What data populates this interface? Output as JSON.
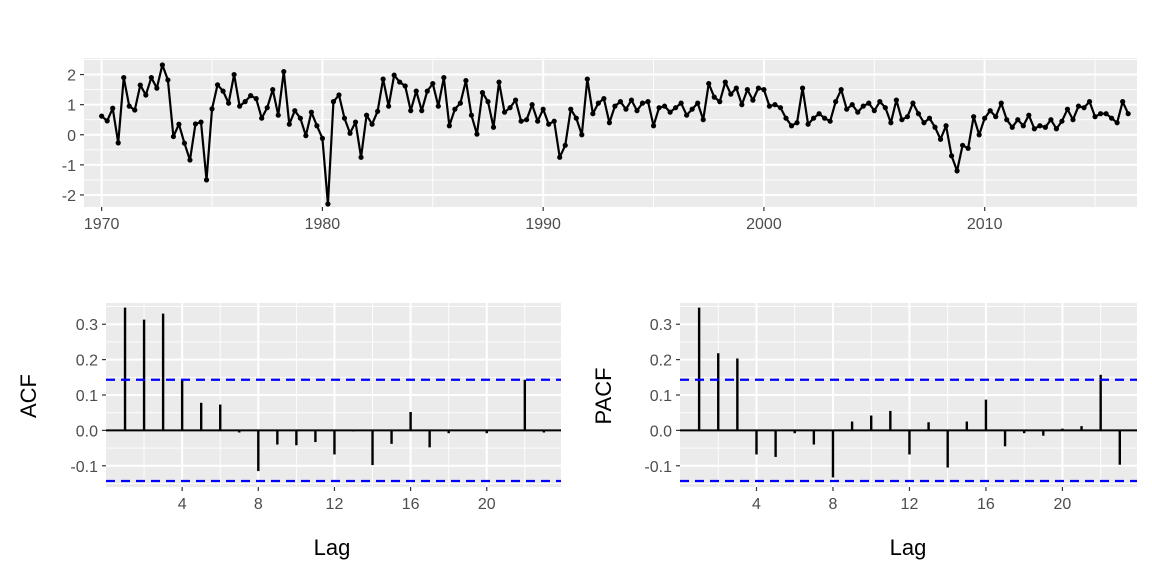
{
  "colors": {
    "panel_bg": "#ebebeb",
    "grid_major": "#ffffff",
    "line": "#000000",
    "ci": "#0000ff",
    "tick_text": "#4d4d4d"
  },
  "chart_data": [
    {
      "type": "line",
      "title": "",
      "xlabel": "",
      "ylabel": "",
      "frequency": "quarterly",
      "start": [
        1970,
        1
      ],
      "xlim": [
        1969.2,
        2016.9
      ],
      "ylim": [
        -2.4,
        2.55
      ],
      "xticks": [
        1970,
        1980,
        1990,
        2000,
        2010
      ],
      "yticks": [
        -2,
        -1,
        0,
        1,
        2
      ],
      "ytick_labels": [
        "-2",
        "-1",
        "0",
        "1",
        "2"
      ],
      "grid": true,
      "points_marked": true,
      "values": [
        0.62,
        0.46,
        0.88,
        -0.27,
        1.9,
        0.95,
        0.82,
        1.65,
        1.32,
        1.9,
        1.55,
        2.32,
        1.82,
        -0.06,
        0.35,
        -0.28,
        -0.84,
        0.36,
        0.42,
        -1.5,
        0.86,
        1.66,
        1.45,
        1.05,
        2.0,
        0.95,
        1.1,
        1.3,
        1.2,
        0.55,
        0.9,
        1.5,
        0.65,
        2.1,
        0.35,
        0.8,
        0.55,
        -0.03,
        0.75,
        0.3,
        -0.12,
        -2.3,
        1.1,
        1.32,
        0.55,
        0.05,
        0.42,
        -0.75,
        0.65,
        0.35,
        0.78,
        1.85,
        0.95,
        1.98,
        1.75,
        1.62,
        0.8,
        1.45,
        0.8,
        1.45,
        1.7,
        0.95,
        1.9,
        0.3,
        0.85,
        1.05,
        1.8,
        0.65,
        0.02,
        1.4,
        1.1,
        0.25,
        1.75,
        0.75,
        0.9,
        1.15,
        0.45,
        0.5,
        1.0,
        0.45,
        0.85,
        0.35,
        0.45,
        -0.75,
        -0.35,
        0.85,
        0.55,
        0.0,
        1.85,
        0.7,
        1.05,
        1.2,
        0.4,
        0.95,
        1.1,
        0.85,
        1.15,
        0.8,
        1.05,
        1.1,
        0.3,
        0.9,
        0.95,
        0.75,
        0.9,
        1.05,
        0.65,
        0.85,
        1.05,
        0.5,
        1.7,
        1.25,
        1.1,
        1.75,
        1.35,
        1.55,
        1.0,
        1.5,
        1.15,
        1.55,
        1.5,
        0.95,
        1.0,
        0.9,
        0.55,
        0.3,
        0.4,
        1.55,
        0.35,
        0.55,
        0.7,
        0.55,
        0.45,
        1.1,
        1.5,
        0.85,
        1.0,
        0.75,
        0.95,
        1.05,
        0.8,
        1.1,
        0.9,
        0.4,
        1.15,
        0.5,
        0.6,
        1.05,
        0.7,
        0.4,
        0.55,
        0.25,
        -0.15,
        0.3,
        -0.7,
        -1.2,
        -0.35,
        -0.45,
        0.6,
        0.0,
        0.55,
        0.8,
        0.6,
        1.05,
        0.5,
        0.25,
        0.5,
        0.3,
        0.65,
        0.2,
        0.3,
        0.25,
        0.5,
        0.2,
        0.45,
        0.85,
        0.5,
        0.95,
        0.9,
        1.1,
        0.6,
        0.7,
        0.7,
        0.55,
        0.4,
        1.1,
        0.7
      ]
    },
    {
      "type": "bar",
      "title": "",
      "xlabel": "Lag",
      "ylabel": "ACF",
      "xlim": [
        0.0,
        23.9
      ],
      "ylim": [
        -0.16,
        0.36
      ],
      "xticks": [
        4,
        8,
        12,
        16,
        20
      ],
      "yticks": [
        -0.1,
        0.0,
        0.1,
        0.2,
        0.3
      ],
      "ytick_labels": [
        "-0.1",
        "0.0",
        "0.1",
        "0.2",
        "0.3"
      ],
      "ci_bounds": [
        0.143,
        -0.143
      ],
      "lags": [
        1,
        2,
        3,
        4,
        5,
        6,
        7,
        8,
        9,
        10,
        11,
        12,
        13,
        14,
        15,
        16,
        17,
        18,
        19,
        20,
        21,
        22,
        23
      ],
      "values": [
        0.347,
        0.313,
        0.33,
        0.143,
        0.078,
        0.073,
        -0.006,
        -0.115,
        -0.04,
        -0.042,
        -0.033,
        -0.068,
        -0.003,
        -0.098,
        -0.038,
        0.052,
        -0.048,
        -0.008,
        0.0,
        -0.008,
        0.0,
        0.143,
        -0.006
      ]
    },
    {
      "type": "bar",
      "title": "",
      "xlabel": "Lag",
      "ylabel": "PACF",
      "xlim": [
        0.0,
        23.9
      ],
      "ylim": [
        -0.16,
        0.36
      ],
      "xticks": [
        4,
        8,
        12,
        16,
        20
      ],
      "yticks": [
        -0.1,
        0.0,
        0.1,
        0.2,
        0.3
      ],
      "ytick_labels": [
        "-0.1",
        "0.0",
        "0.1",
        "0.2",
        "0.3"
      ],
      "ci_bounds": [
        0.143,
        -0.143
      ],
      "lags": [
        1,
        2,
        3,
        4,
        5,
        6,
        7,
        8,
        9,
        10,
        11,
        12,
        13,
        14,
        15,
        16,
        17,
        18,
        19,
        20,
        21,
        22,
        23
      ],
      "values": [
        0.347,
        0.218,
        0.203,
        -0.068,
        -0.075,
        -0.008,
        -0.04,
        -0.133,
        0.025,
        0.042,
        0.055,
        -0.068,
        0.023,
        -0.105,
        0.025,
        0.087,
        -0.045,
        -0.008,
        -0.015,
        0.005,
        0.012,
        0.157,
        -0.097
      ]
    }
  ]
}
